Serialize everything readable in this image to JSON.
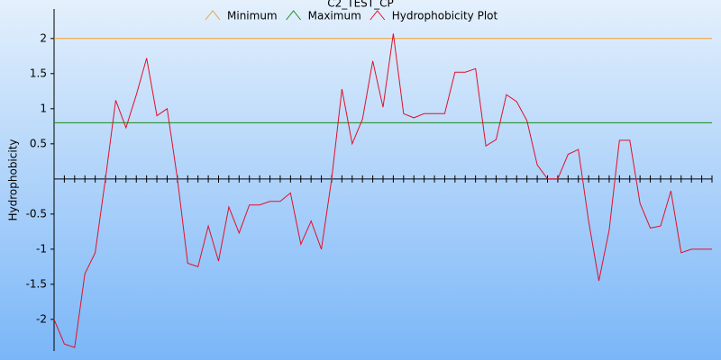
{
  "chart_data": {
    "type": "line",
    "title": "C2_TEST_CP",
    "y_label": "Hydrophobicity",
    "ylim": [
      -2.45,
      2.42
    ],
    "yticks": [
      -2,
      -1.5,
      -1,
      -0.5,
      0.5,
      1,
      1.5,
      2
    ],
    "series": [
      {
        "name": "Minimum",
        "color": "#f0a030",
        "value": 2
      },
      {
        "name": "Maximum",
        "color": "#1a8a1a",
        "value": 0.8
      },
      {
        "name": "Hydrophobicity Plot",
        "color": "#e0102a",
        "values": [
          -2.0,
          -2.35,
          -2.4,
          -1.35,
          -1.05,
          0,
          1.12,
          0.73,
          1.2,
          1.72,
          0.9,
          1.0,
          0,
          -1.2,
          -1.25,
          -0.67,
          -1.17,
          -0.4,
          -0.77,
          -0.37,
          -0.37,
          -0.32,
          -0.32,
          -0.2,
          -0.93,
          -0.6,
          -1.0,
          0,
          1.28,
          0.5,
          0.85,
          1.68,
          1.02,
          2.07,
          0.93,
          0.87,
          0.93,
          0.93,
          0.93,
          1.52,
          1.52,
          1.57,
          0.47,
          0.56,
          1.2,
          1.1,
          0.83,
          0.2,
          0,
          0,
          0.35,
          0.42,
          -0.6,
          -1.45,
          -0.73,
          0.55,
          0.55,
          -0.35,
          -0.7,
          -0.67,
          -0.17,
          -1.05,
          -1.0,
          -1.0,
          -1.0
        ]
      }
    ]
  }
}
